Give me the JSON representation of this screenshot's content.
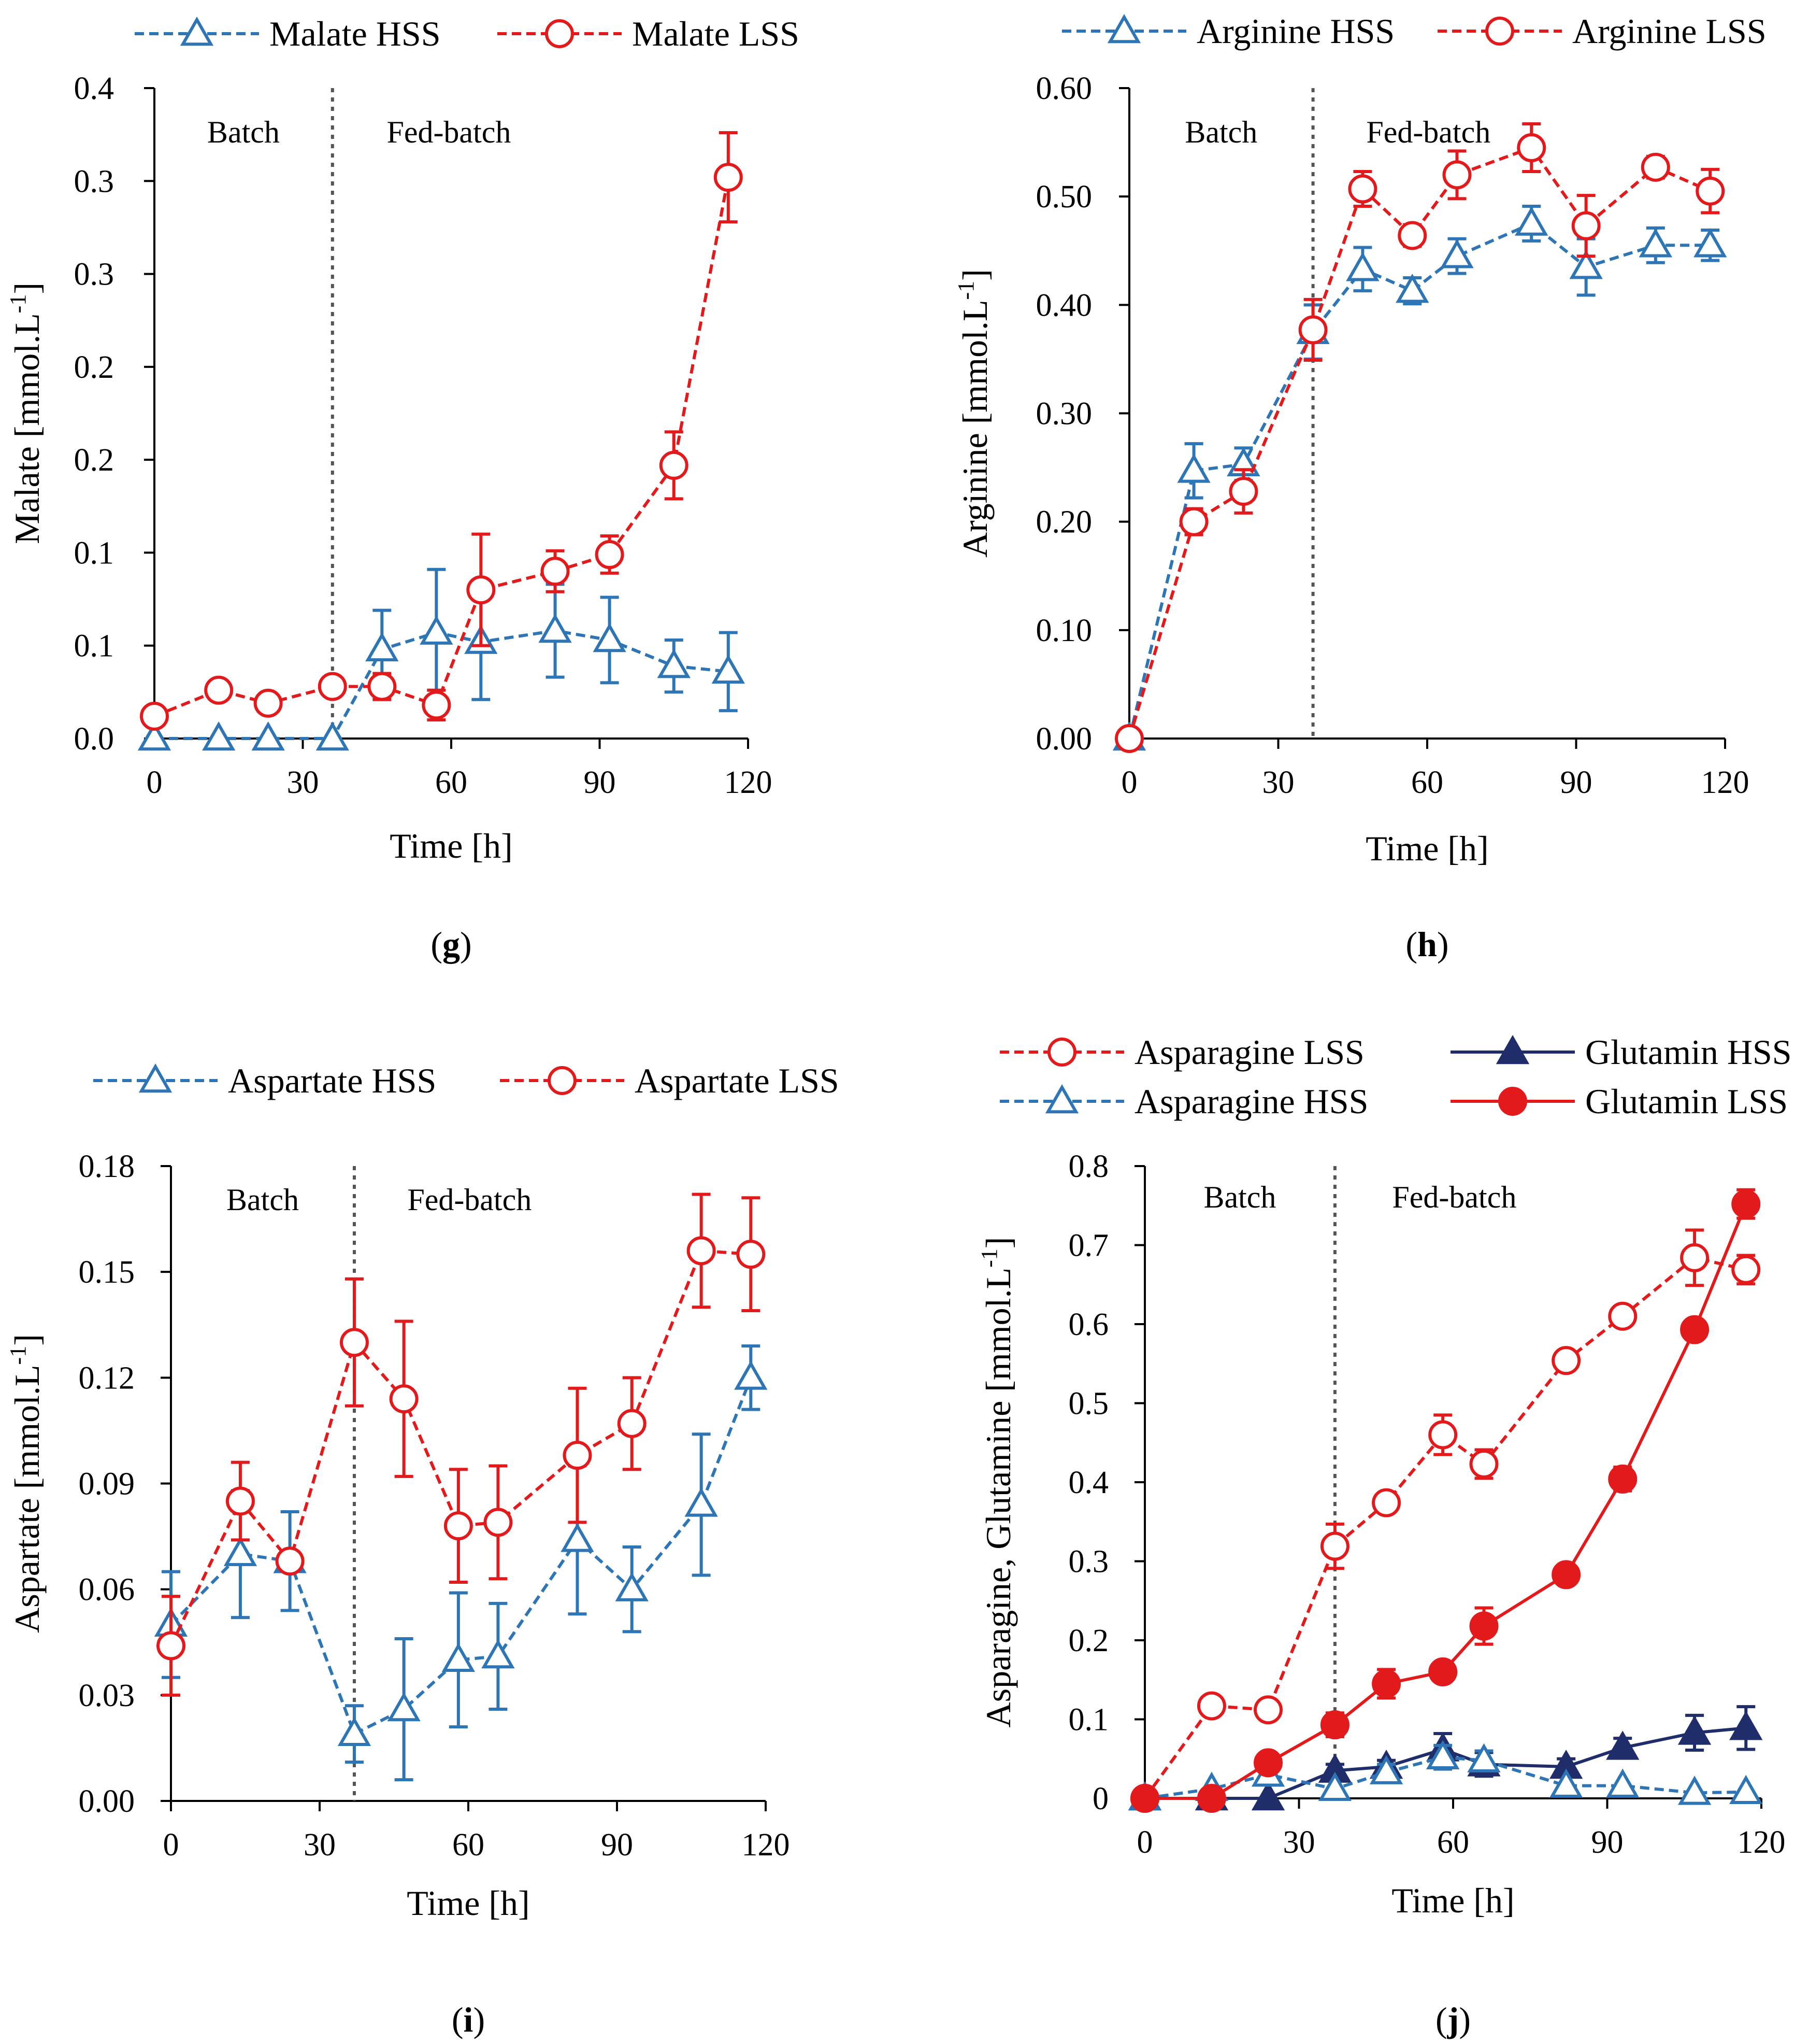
{
  "colors": {
    "hss": "#2E75B6",
    "lss": "#E31A1C",
    "glut_hss": "#1F2D6B",
    "glut_lss": "#E31A1C",
    "divider": "#555555",
    "axis": "#000000"
  },
  "chart_data": [
    {
      "id": "g",
      "type": "line",
      "caption": "g",
      "xlabel": "Time [h]",
      "ylabel_main": "Malate [mmol.L",
      "ylabel_sup": "-1",
      "ylabel_close": "]",
      "xlim": [
        0,
        120
      ],
      "ylim": [
        0,
        0.35
      ],
      "xticks": [
        0,
        30,
        60,
        90,
        120
      ],
      "xtick_labels": [
        "0",
        "30",
        "60",
        "90",
        "120"
      ],
      "yticks": [
        0,
        0.05,
        0.1,
        0.15,
        0.2,
        0.25,
        0.3,
        0.35
      ],
      "ytick_labels": [
        "0.0",
        "0.1",
        "0.1",
        "0.2",
        "0.2",
        "0.3",
        "0.3",
        "0.4"
      ],
      "phase_divider_x": 36,
      "phase_labels": {
        "batch": "Batch",
        "fed": "Fed-batch"
      },
      "legend_rows": 1,
      "series": [
        {
          "name": "Malate HSS",
          "style": "dashed",
          "marker": "triangle-open",
          "color_key": "hss",
          "x": [
            0,
            13,
            23,
            36,
            46,
            57,
            66,
            81,
            92,
            105,
            116
          ],
          "y": [
            0,
            0,
            0,
            0,
            0.048,
            0.057,
            0.052,
            0.058,
            0.053,
            0.039,
            0.036
          ],
          "err": [
            0,
            0,
            0,
            0,
            0.021,
            0.034,
            0.031,
            0.025,
            0.023,
            0.014,
            0.021
          ]
        },
        {
          "name": "Malate LSS",
          "style": "dashed",
          "marker": "circle-open",
          "color_key": "lss",
          "x": [
            0,
            13,
            23,
            36,
            46,
            57,
            66,
            81,
            92,
            105,
            116
          ],
          "y": [
            0.012,
            0.026,
            0.019,
            0.028,
            0.028,
            0.018,
            0.08,
            0.09,
            0.099,
            0.147,
            0.302
          ],
          "err": [
            0,
            0,
            0,
            0,
            0.007,
            0.008,
            0.03,
            0.011,
            0.01,
            0.018,
            0.024
          ]
        }
      ]
    },
    {
      "id": "h",
      "type": "line",
      "caption": "h",
      "xlabel": "Time [h]",
      "ylabel_main": "Arginine  [mmol.L",
      "ylabel_sup": "-1",
      "ylabel_close": "]",
      "xlim": [
        0,
        120
      ],
      "ylim": [
        0,
        0.6
      ],
      "xticks": [
        0,
        30,
        60,
        90,
        120
      ],
      "xtick_labels": [
        "0",
        "30",
        "60",
        "90",
        "120"
      ],
      "yticks": [
        0,
        0.1,
        0.2,
        0.3,
        0.4,
        0.5,
        0.6
      ],
      "ytick_labels": [
        "0.00",
        "0.10",
        "0.20",
        "0.30",
        "0.40",
        "0.50",
        "0.60"
      ],
      "phase_divider_x": 37,
      "phase_labels": {
        "batch": "Batch",
        "fed": "Fed-batch"
      },
      "legend_rows": 1,
      "series": [
        {
          "name": "Arginine HSS",
          "style": "dashed",
          "marker": "triangle-open",
          "color_key": "hss",
          "x": [
            0,
            13,
            23,
            37,
            47,
            57,
            66,
            81,
            92,
            106,
            117
          ],
          "y": [
            0,
            0.247,
            0.253,
            0.375,
            0.433,
            0.413,
            0.445,
            0.475,
            0.435,
            0.455,
            0.455
          ],
          "err": [
            0,
            0.025,
            0.015,
            0.025,
            0.02,
            0.012,
            0.016,
            0.016,
            0.026,
            0.016,
            0.014
          ]
        },
        {
          "name": "Arginine LSS",
          "style": "dashed",
          "marker": "circle-open",
          "color_key": "lss",
          "x": [
            0,
            13,
            23,
            37,
            47,
            57,
            66,
            81,
            92,
            106,
            117
          ],
          "y": [
            0,
            0.2,
            0.228,
            0.377,
            0.507,
            0.464,
            0.52,
            0.545,
            0.473,
            0.527,
            0.505
          ],
          "err": [
            0,
            0.012,
            0.02,
            0.028,
            0.016,
            0.01,
            0.022,
            0.022,
            0.028,
            0.01,
            0.02
          ]
        }
      ]
    },
    {
      "id": "i",
      "type": "line",
      "caption": "i",
      "xlabel": "Time [h]",
      "ylabel_main": "Aspartate  [mmol.L",
      "ylabel_sup": "-1",
      "ylabel_close": "]",
      "xlim": [
        0,
        120
      ],
      "ylim": [
        0,
        0.18
      ],
      "xticks": [
        0,
        30,
        60,
        90,
        120
      ],
      "xtick_labels": [
        "0",
        "30",
        "60",
        "90",
        "120"
      ],
      "yticks": [
        0,
        0.03,
        0.06,
        0.09,
        0.12,
        0.15,
        0.18
      ],
      "ytick_labels": [
        "0.00",
        "0.03",
        "0.06",
        "0.09",
        "0.12",
        "0.15",
        "0.18"
      ],
      "phase_divider_x": 37,
      "phase_labels": {
        "batch": "Batch",
        "fed": "Fed-batch"
      },
      "legend_rows": 1,
      "series": [
        {
          "name": "Aspartate HSS",
          "style": "dashed",
          "marker": "triangle-open",
          "color_key": "hss",
          "x": [
            0,
            14,
            24,
            37,
            47,
            58,
            66,
            82,
            93,
            107,
            117
          ],
          "y": [
            0.05,
            0.07,
            0.068,
            0.019,
            0.026,
            0.04,
            0.041,
            0.074,
            0.06,
            0.084,
            0.12
          ],
          "err": [
            0.015,
            0.018,
            0.014,
            0.008,
            0.02,
            0.019,
            0.015,
            0.021,
            0.012,
            0.02,
            0.009
          ]
        },
        {
          "name": "Aspartate LSS",
          "style": "dashed",
          "marker": "circle-open",
          "color_key": "lss",
          "x": [
            0,
            14,
            24,
            37,
            47,
            58,
            66,
            82,
            93,
            107,
            117
          ],
          "y": [
            0.044,
            0.085,
            0.068,
            0.13,
            0.114,
            0.078,
            0.079,
            0.098,
            0.107,
            0.156,
            0.155
          ],
          "err": [
            0.014,
            0.011,
            0,
            0.018,
            0.022,
            0.016,
            0.016,
            0.019,
            0.013,
            0.016,
            0.016
          ]
        }
      ]
    },
    {
      "id": "j",
      "type": "line",
      "caption": "j",
      "xlabel": "Time [h]",
      "ylabel_main": "Asparagine, Glutamine [mmol.L",
      "ylabel_sup": "-1",
      "ylabel_close": "]",
      "xlim": [
        0,
        120
      ],
      "ylim": [
        0,
        0.8
      ],
      "xticks": [
        0,
        30,
        60,
        90,
        120
      ],
      "xtick_labels": [
        "0",
        "30",
        "60",
        "90",
        "120"
      ],
      "yticks": [
        0,
        0.1,
        0.2,
        0.3,
        0.4,
        0.5,
        0.6,
        0.7,
        0.8
      ],
      "ytick_labels": [
        "0",
        "0.1",
        "0.2",
        "0.3",
        "0.4",
        "0.5",
        "0.6",
        "0.7",
        "0.8"
      ],
      "phase_divider_x": 37,
      "phase_labels": {
        "batch": "Batch",
        "fed": "Fed-batch"
      },
      "legend_rows": 2,
      "series": [
        {
          "name": "Asparagine LSS",
          "style": "dashed",
          "marker": "circle-open",
          "color_key": "lss",
          "x": [
            0,
            13,
            24,
            37,
            47,
            58,
            66,
            82,
            93,
            107,
            117
          ],
          "y": [
            0,
            0.117,
            0.112,
            0.319,
            0.374,
            0.46,
            0.423,
            0.554,
            0.61,
            0.684,
            0.669
          ],
          "err": [
            0,
            0,
            0,
            0.028,
            0,
            0.025,
            0.018,
            0,
            0,
            0.035,
            0.018
          ]
        },
        {
          "name": "Glutamin HSS",
          "style": "solid",
          "marker": "triangle-filled",
          "color_key": "glut_hss",
          "x": [
            0,
            13,
            24,
            37,
            47,
            58,
            66,
            82,
            93,
            107,
            117
          ],
          "y": [
            0,
            0,
            0,
            0.035,
            0.04,
            0.062,
            0.043,
            0.04,
            0.064,
            0.083,
            0.089
          ],
          "err": [
            0,
            0,
            0,
            0.008,
            0.008,
            0.02,
            0.015,
            0.01,
            0.012,
            0.022,
            0.027
          ]
        },
        {
          "name": "Asparagine HSS",
          "style": "dashed",
          "marker": "triangle-open",
          "color_key": "hss",
          "x": [
            0,
            13,
            24,
            37,
            47,
            58,
            66,
            82,
            93,
            107,
            117
          ],
          "y": [
            0,
            0.012,
            0.03,
            0.012,
            0.033,
            0.052,
            0.048,
            0.016,
            0.016,
            0.007,
            0.008
          ],
          "err": [
            0,
            0,
            0,
            0,
            0.01,
            0.015,
            0.012,
            0,
            0,
            0,
            0
          ]
        },
        {
          "name": "Glutamin LSS",
          "style": "solid",
          "marker": "circle-filled",
          "color_key": "glut_lss",
          "x": [
            0,
            13,
            24,
            37,
            47,
            58,
            66,
            82,
            93,
            107,
            117
          ],
          "y": [
            0,
            0,
            0.045,
            0.093,
            0.145,
            0.16,
            0.218,
            0.283,
            0.404,
            0.593,
            0.752
          ],
          "err": [
            0,
            0,
            0,
            0.015,
            0.018,
            0,
            0.023,
            0,
            0.015,
            0,
            0.018
          ]
        }
      ]
    }
  ]
}
